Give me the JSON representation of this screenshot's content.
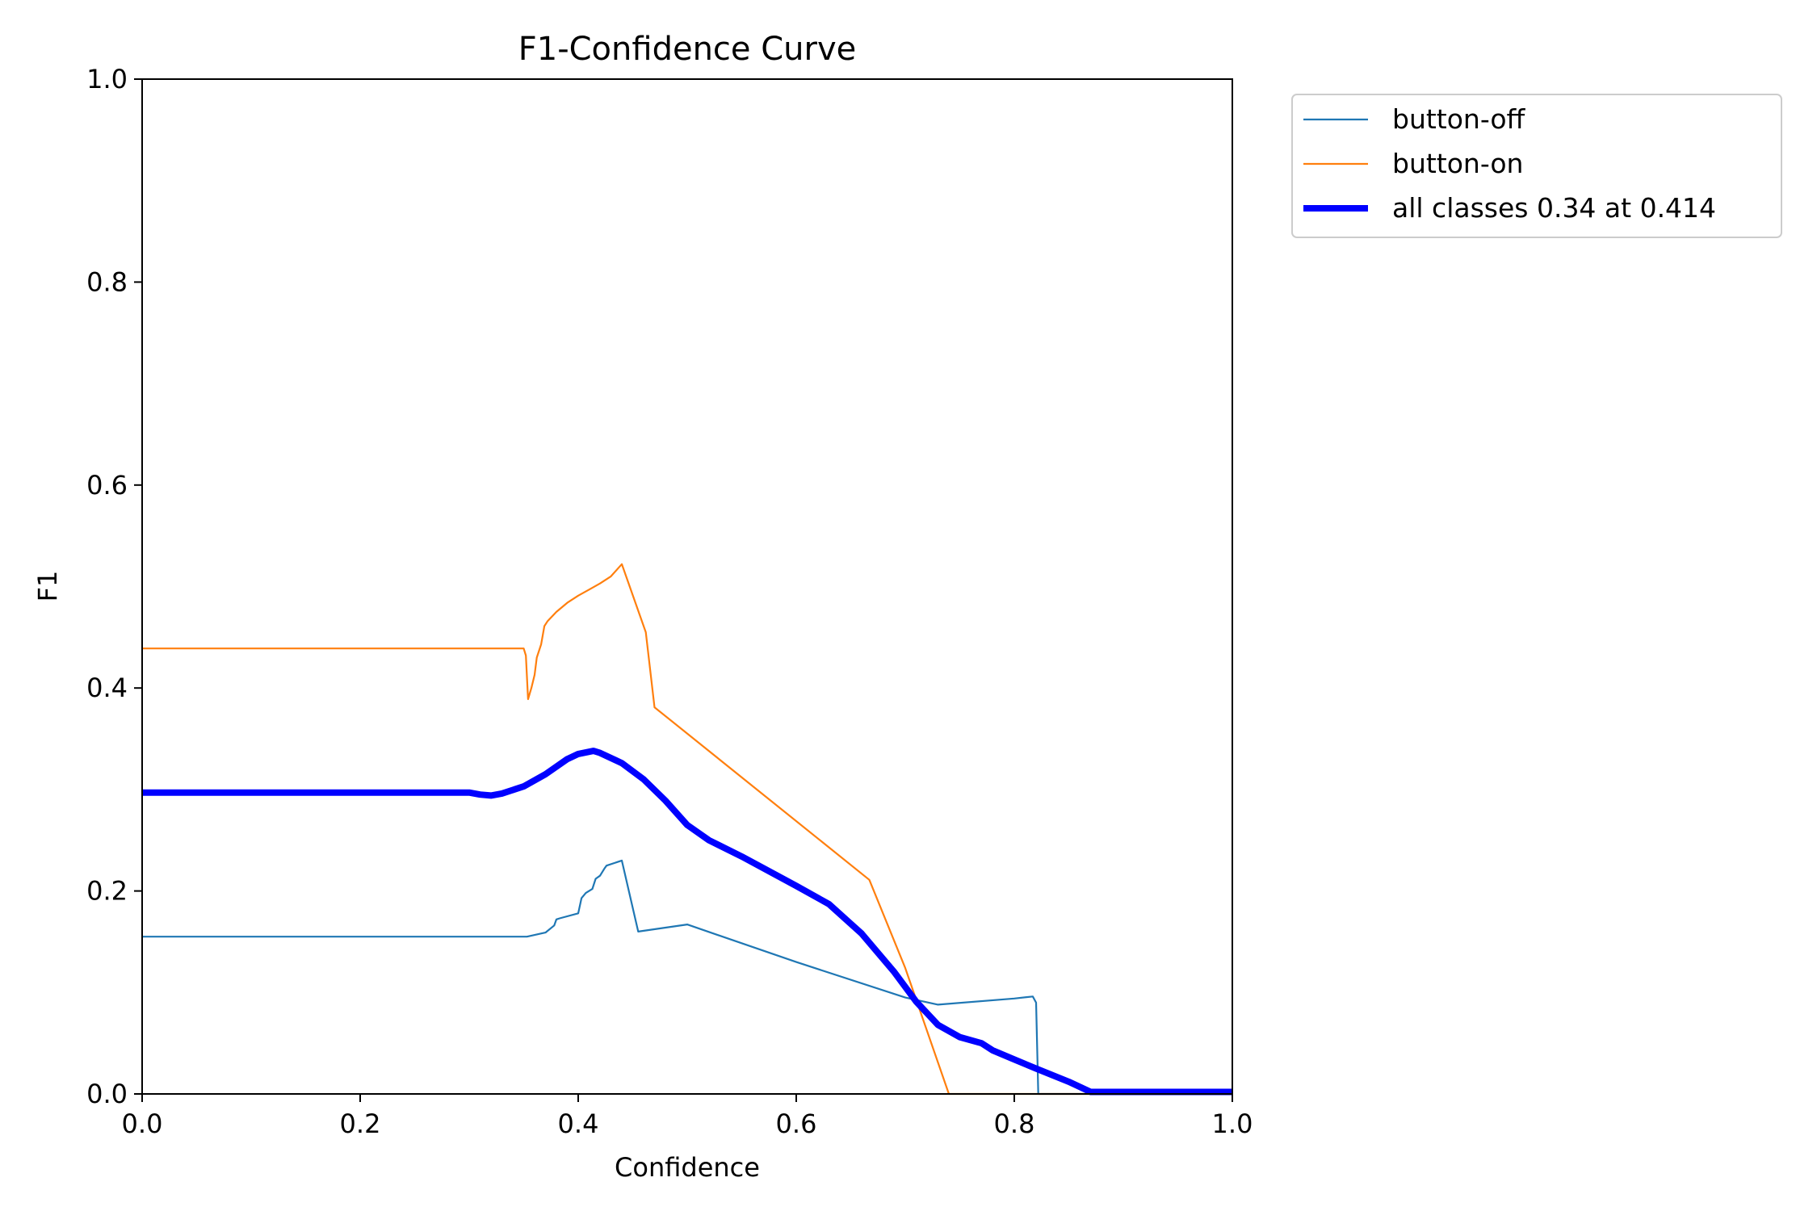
{
  "chart_data": {
    "type": "line",
    "title": "F1-Confidence Curve",
    "xlabel": "Confidence",
    "ylabel": "F1",
    "xlim": [
      0,
      1
    ],
    "ylim": [
      0,
      1
    ],
    "x_ticks": [
      "0.0",
      "0.2",
      "0.4",
      "0.6",
      "0.8",
      "1.0"
    ],
    "y_ticks": [
      "0.0",
      "0.2",
      "0.4",
      "0.6",
      "0.8",
      "1.0"
    ],
    "grid": false,
    "legend_position": "outside-top-right",
    "series": [
      {
        "name": "button-off",
        "color": "#1f77b4",
        "x": [
          0.0,
          0.35,
          0.353,
          0.37,
          0.378,
          0.38,
          0.383,
          0.4,
          0.403,
          0.407,
          0.413,
          0.416,
          0.42,
          0.424,
          0.426,
          0.44,
          0.455,
          0.5,
          0.6,
          0.7,
          0.73,
          0.8,
          0.817,
          0.82,
          0.822,
          1.0
        ],
        "y": [
          0.155,
          0.155,
          0.155,
          0.159,
          0.166,
          0.172,
          0.173,
          0.178,
          0.193,
          0.198,
          0.202,
          0.212,
          0.215,
          0.222,
          0.225,
          0.23,
          0.16,
          0.167,
          0.13,
          0.095,
          0.088,
          0.094,
          0.096,
          0.09,
          0.0,
          0.0
        ]
      },
      {
        "name": "button-on",
        "color": "#ff7f0e",
        "x": [
          0.0,
          0.35,
          0.352,
          0.354,
          0.357,
          0.36,
          0.362,
          0.366,
          0.369,
          0.372,
          0.38,
          0.39,
          0.4,
          0.41,
          0.42,
          0.43,
          0.44,
          0.462,
          0.47,
          0.667,
          0.7,
          0.74,
          1.0
        ],
        "y": [
          0.439,
          0.439,
          0.432,
          0.389,
          0.4,
          0.413,
          0.43,
          0.443,
          0.461,
          0.466,
          0.475,
          0.484,
          0.491,
          0.497,
          0.503,
          0.51,
          0.522,
          0.455,
          0.381,
          0.211,
          0.124,
          0.0,
          0.0
        ]
      },
      {
        "name": "all classes 0.34 at 0.414",
        "color": "#0000ff",
        "thick": true,
        "x": [
          0.0,
          0.3,
          0.31,
          0.32,
          0.33,
          0.35,
          0.37,
          0.39,
          0.4,
          0.414,
          0.42,
          0.44,
          0.46,
          0.48,
          0.5,
          0.52,
          0.55,
          0.6,
          0.63,
          0.66,
          0.69,
          0.71,
          0.73,
          0.75,
          0.77,
          0.78,
          0.8,
          0.82,
          0.85,
          0.87,
          1.0
        ],
        "y": [
          0.297,
          0.297,
          0.295,
          0.294,
          0.296,
          0.303,
          0.315,
          0.33,
          0.335,
          0.338,
          0.336,
          0.326,
          0.31,
          0.289,
          0.265,
          0.25,
          0.234,
          0.205,
          0.187,
          0.158,
          0.12,
          0.091,
          0.068,
          0.056,
          0.05,
          0.043,
          0.034,
          0.025,
          0.012,
          0.002,
          0.002
        ]
      }
    ]
  }
}
